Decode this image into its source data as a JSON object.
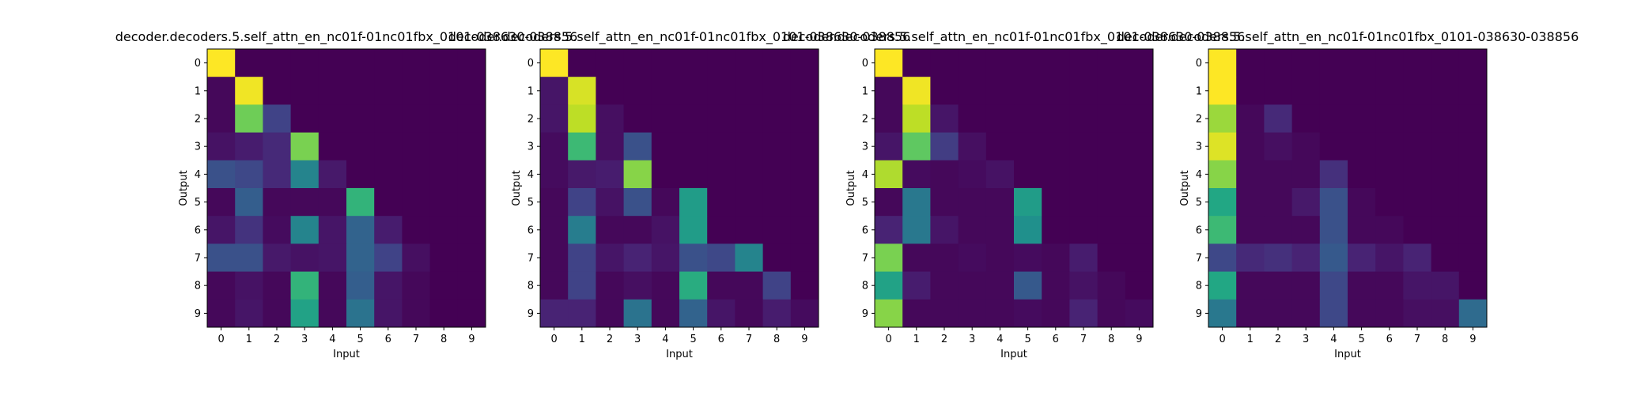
{
  "chart_data": [
    {
      "type": "heatmap",
      "title": "decoder.decoders.5.self_attn_en_nc01f-01nc01fbx_0101-038630-038856",
      "xlabel": "Input",
      "ylabel": "Output",
      "x_ticks": [
        "0",
        "1",
        "2",
        "3",
        "4",
        "5",
        "6",
        "7",
        "8",
        "9"
      ],
      "y_ticks": [
        "0",
        "1",
        "2",
        "3",
        "4",
        "5",
        "6",
        "7",
        "8",
        "9"
      ],
      "colormap": "viridis",
      "values": [
        [
          1.0,
          0.0,
          0.0,
          0.0,
          0.0,
          0.0,
          0.0,
          0.0,
          0.0,
          0.0
        ],
        [
          0.02,
          0.98,
          0.0,
          0.0,
          0.0,
          0.0,
          0.0,
          0.0,
          0.0,
          0.0
        ],
        [
          0.02,
          0.78,
          0.2,
          0.0,
          0.0,
          0.0,
          0.0,
          0.0,
          0.0,
          0.0
        ],
        [
          0.05,
          0.08,
          0.12,
          0.8,
          0.0,
          0.0,
          0.0,
          0.0,
          0.0,
          0.0
        ],
        [
          0.25,
          0.22,
          0.12,
          0.45,
          0.07,
          0.0,
          0.0,
          0.0,
          0.0,
          0.0
        ],
        [
          0.02,
          0.3,
          0.02,
          0.02,
          0.02,
          0.65,
          0.0,
          0.0,
          0.0,
          0.0
        ],
        [
          0.06,
          0.15,
          0.03,
          0.45,
          0.06,
          0.32,
          0.08,
          0.0,
          0.0,
          0.0
        ],
        [
          0.25,
          0.25,
          0.07,
          0.05,
          0.06,
          0.32,
          0.2,
          0.04,
          0.0,
          0.0
        ],
        [
          0.02,
          0.05,
          0.02,
          0.65,
          0.02,
          0.3,
          0.06,
          0.02,
          0.0,
          0.0
        ],
        [
          0.02,
          0.06,
          0.02,
          0.58,
          0.02,
          0.38,
          0.06,
          0.02,
          0.0,
          0.0
        ]
      ]
    },
    {
      "type": "heatmap",
      "title": "decoder.decoders.5.self_attn_en_nc01f-01nc01fbx_0101-038630-038856",
      "xlabel": "Input",
      "ylabel": "Output",
      "x_ticks": [
        "0",
        "1",
        "2",
        "3",
        "4",
        "5",
        "6",
        "7",
        "8",
        "9"
      ],
      "y_ticks": [
        "0",
        "1",
        "2",
        "3",
        "4",
        "5",
        "6",
        "7",
        "8",
        "9"
      ],
      "colormap": "viridis",
      "values": [
        [
          1.0,
          0.0,
          0.0,
          0.0,
          0.0,
          0.0,
          0.0,
          0.0,
          0.0,
          0.0
        ],
        [
          0.06,
          0.94,
          0.0,
          0.0,
          0.0,
          0.0,
          0.0,
          0.0,
          0.0,
          0.0
        ],
        [
          0.06,
          0.9,
          0.04,
          0.0,
          0.0,
          0.0,
          0.0,
          0.0,
          0.0,
          0.0
        ],
        [
          0.03,
          0.68,
          0.04,
          0.25,
          0.0,
          0.0,
          0.0,
          0.0,
          0.0,
          0.0
        ],
        [
          0.03,
          0.07,
          0.08,
          0.82,
          0.0,
          0.0,
          0.0,
          0.0,
          0.0,
          0.0
        ],
        [
          0.02,
          0.2,
          0.05,
          0.25,
          0.02,
          0.55,
          0.0,
          0.0,
          0.0,
          0.0
        ],
        [
          0.02,
          0.42,
          0.02,
          0.02,
          0.05,
          0.55,
          0.0,
          0.0,
          0.0,
          0.0
        ],
        [
          0.02,
          0.2,
          0.06,
          0.1,
          0.06,
          0.25,
          0.22,
          0.45,
          0.0,
          0.0
        ],
        [
          0.02,
          0.2,
          0.02,
          0.04,
          0.02,
          0.62,
          0.02,
          0.02,
          0.2,
          0.0
        ],
        [
          0.1,
          0.1,
          0.02,
          0.38,
          0.02,
          0.32,
          0.06,
          0.02,
          0.08,
          0.03
        ]
      ]
    },
    {
      "type": "heatmap",
      "title": "decoder.decoders.5.self_attn_en_nc01f-01nc01fbx_0101-038630-038856",
      "xlabel": "Input",
      "ylabel": "Output",
      "x_ticks": [
        "0",
        "1",
        "2",
        "3",
        "4",
        "5",
        "6",
        "7",
        "8",
        "9"
      ],
      "y_ticks": [
        "0",
        "1",
        "2",
        "3",
        "4",
        "5",
        "6",
        "7",
        "8",
        "9"
      ],
      "colormap": "viridis",
      "values": [
        [
          1.0,
          0.0,
          0.0,
          0.0,
          0.0,
          0.0,
          0.0,
          0.0,
          0.0,
          0.0
        ],
        [
          0.02,
          0.98,
          0.0,
          0.0,
          0.0,
          0.0,
          0.0,
          0.0,
          0.0,
          0.0
        ],
        [
          0.02,
          0.9,
          0.06,
          0.0,
          0.0,
          0.0,
          0.0,
          0.0,
          0.0,
          0.0
        ],
        [
          0.06,
          0.75,
          0.18,
          0.04,
          0.0,
          0.0,
          0.0,
          0.0,
          0.0,
          0.0
        ],
        [
          0.88,
          0.03,
          0.02,
          0.03,
          0.05,
          0.0,
          0.0,
          0.0,
          0.0,
          0.0
        ],
        [
          0.02,
          0.4,
          0.02,
          0.02,
          0.02,
          0.55,
          0.0,
          0.0,
          0.0,
          0.0
        ],
        [
          0.1,
          0.4,
          0.06,
          0.02,
          0.02,
          0.5,
          0.0,
          0.0,
          0.0,
          0.0
        ],
        [
          0.8,
          0.02,
          0.02,
          0.03,
          0.02,
          0.03,
          0.02,
          0.08,
          0.0,
          0.0
        ],
        [
          0.58,
          0.08,
          0.02,
          0.02,
          0.02,
          0.28,
          0.02,
          0.05,
          0.02,
          0.0
        ],
        [
          0.82,
          0.02,
          0.02,
          0.02,
          0.02,
          0.03,
          0.02,
          0.1,
          0.02,
          0.03
        ]
      ]
    },
    {
      "type": "heatmap",
      "title": "decoder.decoders.5.self_attn_en_nc01f-01nc01fbx_0101-038630-038856",
      "xlabel": "Input",
      "ylabel": "Output",
      "x_ticks": [
        "0",
        "1",
        "2",
        "3",
        "4",
        "5",
        "6",
        "7",
        "8",
        "9"
      ],
      "y_ticks": [
        "0",
        "1",
        "2",
        "3",
        "4",
        "5",
        "6",
        "7",
        "8",
        "9"
      ],
      "colormap": "viridis",
      "values": [
        [
          1.0,
          0.0,
          0.0,
          0.0,
          0.0,
          0.0,
          0.0,
          0.0,
          0.0,
          0.0
        ],
        [
          1.0,
          0.0,
          0.0,
          0.0,
          0.0,
          0.0,
          0.0,
          0.0,
          0.0,
          0.0
        ],
        [
          0.85,
          0.02,
          0.12,
          0.0,
          0.0,
          0.0,
          0.0,
          0.0,
          0.0,
          0.0
        ],
        [
          0.95,
          0.02,
          0.04,
          0.02,
          0.0,
          0.0,
          0.0,
          0.0,
          0.0,
          0.0
        ],
        [
          0.82,
          0.02,
          0.02,
          0.02,
          0.14,
          0.0,
          0.0,
          0.0,
          0.0,
          0.0
        ],
        [
          0.6,
          0.02,
          0.02,
          0.07,
          0.25,
          0.02,
          0.0,
          0.0,
          0.0,
          0.0
        ],
        [
          0.68,
          0.02,
          0.02,
          0.02,
          0.25,
          0.02,
          0.02,
          0.0,
          0.0,
          0.0
        ],
        [
          0.22,
          0.12,
          0.14,
          0.1,
          0.28,
          0.1,
          0.06,
          0.1,
          0.0,
          0.0
        ],
        [
          0.6,
          0.02,
          0.02,
          0.02,
          0.22,
          0.02,
          0.02,
          0.06,
          0.06,
          0.0
        ],
        [
          0.4,
          0.02,
          0.02,
          0.02,
          0.22,
          0.02,
          0.02,
          0.04,
          0.04,
          0.35
        ]
      ]
    }
  ]
}
